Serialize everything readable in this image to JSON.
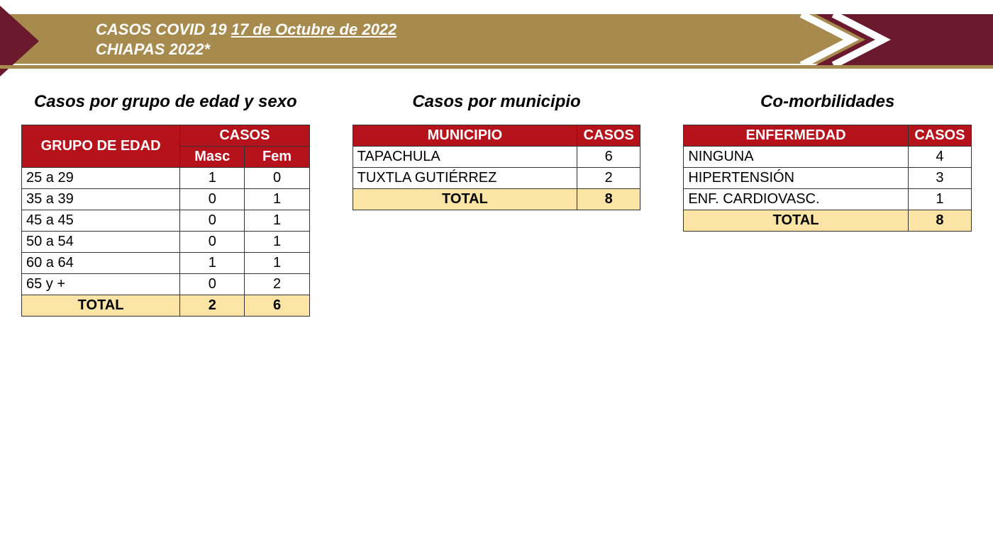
{
  "colors": {
    "gold": "#a78b4e",
    "maroon": "#6a1a2c",
    "red": "#b5121b",
    "total_bg": "#fbe4a5",
    "border": "#333333",
    "white": "#ffffff"
  },
  "header": {
    "title_prefix": "CASOS COVID 19 ",
    "date": "17 de Octubre de 2022",
    "subtitle": "CHIAPAS 2022*"
  },
  "age_sex": {
    "title": "Casos por grupo de edad y sexo",
    "header_group": "GRUPO DE EDAD",
    "header_cases": "CASOS",
    "header_masc": "Masc",
    "header_fem": "Fem",
    "rows": [
      {
        "group": "25 a 29",
        "masc": 1,
        "fem": 0
      },
      {
        "group": "35 a 39",
        "masc": 0,
        "fem": 1
      },
      {
        "group": "45 a 45",
        "masc": 0,
        "fem": 1
      },
      {
        "group": "50 a 54",
        "masc": 0,
        "fem": 1
      },
      {
        "group": "60 a 64",
        "masc": 1,
        "fem": 1
      },
      {
        "group": "65 y +",
        "masc": 0,
        "fem": 2
      }
    ],
    "total_label": "TOTAL",
    "total_masc": 2,
    "total_fem": 6
  },
  "municipio": {
    "title": "Casos por municipio",
    "header_muni": "MUNICIPIO",
    "header_cases": "CASOS",
    "rows": [
      {
        "name": "TAPACHULA",
        "cases": 6
      },
      {
        "name": "TUXTLA GUTIÉRREZ",
        "cases": 2
      }
    ],
    "total_label": "TOTAL",
    "total": 8
  },
  "morbid": {
    "title": "Co-morbilidades",
    "header_disease": "ENFERMEDAD",
    "header_cases": "CASOS",
    "rows": [
      {
        "name": "NINGUNA",
        "cases": 4
      },
      {
        "name": "HIPERTENSIÓN",
        "cases": 3
      },
      {
        "name": "ENF. CARDIOVASC.",
        "cases": 1
      }
    ],
    "total_label": "TOTAL",
    "total": 8
  }
}
